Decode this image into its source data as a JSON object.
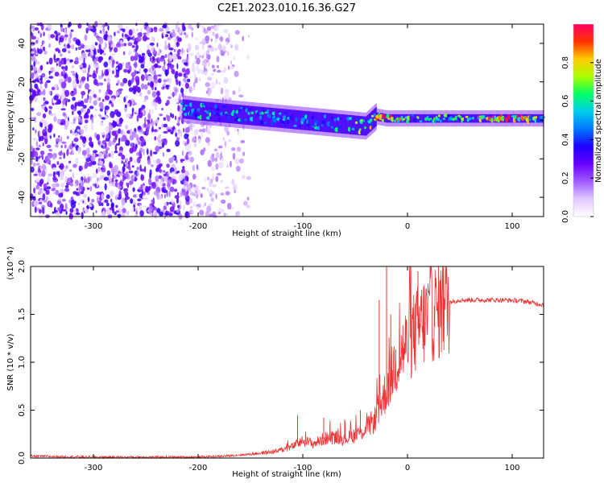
{
  "title": "C2E1.2023.010.16.36.G27",
  "chart_data": [
    {
      "type": "heatmap",
      "xlabel": "Height of straight line (km)",
      "ylabel": "Frequency (Hz)",
      "xlim": [
        -360,
        130
      ],
      "ylim": [
        -50,
        50
      ],
      "xticks": [
        -300,
        -200,
        -100,
        0,
        100
      ],
      "yticks": [
        -40,
        -20,
        0,
        20,
        40
      ],
      "colorbar": {
        "label": "Normalized spectral amplitude",
        "range": [
          0,
          1
        ],
        "ticks": [
          "0.0",
          "0.2",
          "0.4",
          "0.6",
          "0.8"
        ],
        "colors": [
          "#ffffff",
          "#e2c9ff",
          "#a05cff",
          "#6a00ff",
          "#1e00ff",
          "#0077ff",
          "#00ccee",
          "#00ff66",
          "#aaff00",
          "#ffcc00",
          "#ff3300",
          "#ff0066"
        ]
      },
      "ridge": {
        "x": [
          -215,
          -200,
          -180,
          -160,
          -140,
          -120,
          -100,
          -80,
          -60,
          -40,
          -30,
          -20,
          0,
          40,
          100,
          130
        ],
        "frequency": [
          6,
          5,
          4,
          3,
          2,
          1,
          0,
          -1,
          -2,
          -3,
          2,
          1,
          1,
          1,
          1,
          1
        ],
        "amplitude": [
          0.45,
          0.55,
          0.5,
          0.5,
          0.5,
          0.45,
          0.45,
          0.5,
          0.55,
          0.6,
          0.7,
          0.9,
          0.6,
          0.55,
          0.9,
          0.55
        ]
      },
      "noise_region": {
        "x_range": [
          -360,
          -150
        ],
        "frequency_range": [
          -50,
          50
        ],
        "amplitude_max": 0.35
      }
    },
    {
      "type": "line",
      "xlabel": "Height of straight line (km)",
      "ylabel": "SNR (10 * v/v)",
      "y_multiplier": "(x10^4)",
      "xlim": [
        -360,
        130
      ],
      "ylim": [
        0,
        2.0
      ],
      "xticks": [
        -300,
        -200,
        -100,
        0,
        100
      ],
      "yticks": [
        "0.0",
        "0.5",
        "1.0",
        "1.5",
        "2.0"
      ],
      "color": "#ee3333",
      "series": [
        {
          "x": [
            -360,
            -300,
            -250,
            -200,
            -175,
            -150,
            -125,
            -110,
            -100,
            -90,
            -80,
            -70,
            -60,
            -50,
            -40,
            -30,
            -25,
            -20,
            -15,
            -10,
            -5,
            0,
            5,
            10,
            15,
            20,
            25,
            30,
            35,
            40,
            50,
            70,
            90,
            110,
            120,
            130
          ],
          "values": [
            0.02,
            0.01,
            0.01,
            0.01,
            0.02,
            0.04,
            0.07,
            0.12,
            0.18,
            0.15,
            0.2,
            0.22,
            0.2,
            0.24,
            0.3,
            0.42,
            0.58,
            0.72,
            0.88,
            1.02,
            1.12,
            1.2,
            1.28,
            1.35,
            1.42,
            1.48,
            1.52,
            1.55,
            1.6,
            1.63,
            1.65,
            1.65,
            1.65,
            1.64,
            1.62,
            1.6
          ]
        }
      ],
      "spikes": [
        {
          "x": -20,
          "value": 2.0
        },
        {
          "x": -27,
          "value": 1.65
        },
        {
          "x": -16,
          "value": 1.5
        },
        {
          "x": 10,
          "value": 1.95
        },
        {
          "x": 3,
          "value": 1.55
        },
        {
          "x": -105,
          "value": 0.45
        },
        {
          "x": -80,
          "value": 0.42
        },
        {
          "x": -60,
          "value": 0.4
        },
        {
          "x": -45,
          "value": 0.5
        }
      ]
    }
  ]
}
